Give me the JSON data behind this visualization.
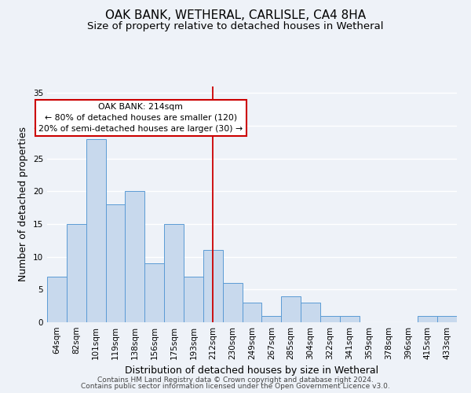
{
  "title": "OAK BANK, WETHERAL, CARLISLE, CA4 8HA",
  "subtitle": "Size of property relative to detached houses in Wetheral",
  "xlabel": "Distribution of detached houses by size in Wetheral",
  "ylabel": "Number of detached properties",
  "bar_labels": [
    "64sqm",
    "82sqm",
    "101sqm",
    "119sqm",
    "138sqm",
    "156sqm",
    "175sqm",
    "193sqm",
    "212sqm",
    "230sqm",
    "249sqm",
    "267sqm",
    "285sqm",
    "304sqm",
    "322sqm",
    "341sqm",
    "359sqm",
    "378sqm",
    "396sqm",
    "415sqm",
    "433sqm"
  ],
  "bar_values": [
    7,
    15,
    28,
    18,
    20,
    9,
    15,
    7,
    11,
    6,
    3,
    1,
    4,
    3,
    1,
    1,
    0,
    0,
    0,
    1,
    1
  ],
  "bar_color": "#c8d9ed",
  "bar_edge_color": "#5b9bd5",
  "vline_x": 8,
  "vline_color": "#cc0000",
  "annotation_title": "OAK BANK: 214sqm",
  "annotation_line1": "← 80% of detached houses are smaller (120)",
  "annotation_line2": "20% of semi-detached houses are larger (30) →",
  "annotation_box_edge": "#cc0000",
  "ylim": [
    0,
    36
  ],
  "yticks": [
    0,
    5,
    10,
    15,
    20,
    25,
    30,
    35
  ],
  "footer1": "Contains HM Land Registry data © Crown copyright and database right 2024.",
  "footer2": "Contains public sector information licensed under the Open Government Licence v3.0.",
  "background_color": "#eef2f8",
  "grid_color": "#ffffff",
  "title_fontsize": 11,
  "subtitle_fontsize": 9.5,
  "axis_label_fontsize": 9,
  "tick_fontsize": 7.5,
  "footer_fontsize": 6.5
}
